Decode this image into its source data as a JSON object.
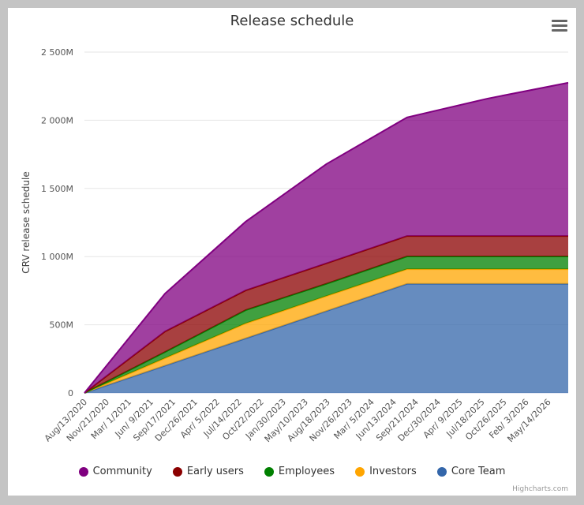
{
  "chart_data": {
    "type": "area",
    "stacking": "normal",
    "title": "Release schedule",
    "ylabel": "CRV release schedule",
    "xlabel": "",
    "ylim": [
      0,
      2500
    ],
    "y_unit": "M",
    "y_ticks": [
      "0",
      "500M",
      "1 000M",
      "1 500M",
      "2 000M",
      "2 500M"
    ],
    "y_tick_values": [
      0,
      500,
      1000,
      1500,
      2000,
      2500
    ],
    "x_days_from_start": [
      0,
      365,
      730,
      1095,
      1461,
      1826,
      2191
    ],
    "x_tick_labels": [
      "Aug/13/2020",
      "Nov/21/2020",
      "Mar/ 1/2021",
      "Jun/ 9/2021",
      "Sep/17/2021",
      "Dec/26/2021",
      "Apr/ 5/2022",
      "Jul/14/2022",
      "Oct/22/2022",
      "Jan/30/2023",
      "May/10/2023",
      "Aug/18/2023",
      "Nov/26/2023",
      "Mar/ 5/2024",
      "Jun/13/2024",
      "Sep/21/2024",
      "Dec/30/2024",
      "Apr/ 9/2025",
      "Jul/18/2025",
      "Oct/26/2025",
      "Feb/ 3/2026",
      "May/14/2026"
    ],
    "x_tick_interval_days": 100,
    "x_max_days": 2191,
    "grid": true,
    "legend_placement": "bottom",
    "series": [
      {
        "name": "Community",
        "color": "#800080",
        "values": [
          0,
          278,
          504,
          728,
          870,
          1008,
          1124
        ]
      },
      {
        "name": "Early users",
        "color": "#8b0000",
        "values": [
          0,
          151,
          145,
          150,
          150,
          150,
          150
        ]
      },
      {
        "name": "Employees",
        "color": "#008000",
        "values": [
          0,
          45,
          97,
          90,
          93,
          93,
          93
        ]
      },
      {
        "name": "Investors",
        "color": "#ffa500",
        "values": [
          0,
          55,
          110,
          110,
          108,
          108,
          108
        ]
      },
      {
        "name": "Core Team",
        "color": "#3366aa",
        "values": [
          0,
          200,
          400,
          600,
          800,
          800,
          800
        ]
      }
    ]
  },
  "credits": "Highcharts.com",
  "menu_icon": "hamburger-icon"
}
